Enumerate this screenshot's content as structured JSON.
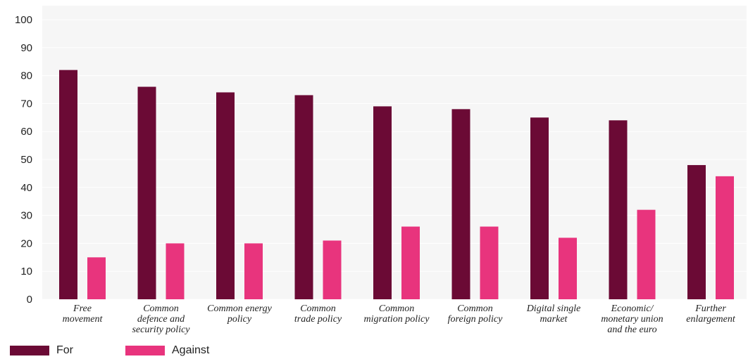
{
  "chart_data": {
    "type": "bar",
    "categories": [
      [
        "Free",
        "movement"
      ],
      [
        "Common",
        "defence and",
        "security policy"
      ],
      [
        "Common energy",
        "policy"
      ],
      [
        "Common",
        "trade policy"
      ],
      [
        "Common",
        "migration policy"
      ],
      [
        "Common",
        "foreign policy"
      ],
      [
        "Digital single",
        "market"
      ],
      [
        "Economic/",
        "monetary union",
        "and the euro"
      ],
      [
        "Further",
        "enlargement"
      ]
    ],
    "series": [
      {
        "name": "For",
        "color": "#6b0a35",
        "values": [
          82,
          76,
          74,
          73,
          69,
          68,
          65,
          64,
          48
        ]
      },
      {
        "name": "Against",
        "color": "#e8347d",
        "values": [
          15,
          20,
          20,
          21,
          26,
          26,
          22,
          32,
          44
        ]
      }
    ],
    "yticks": [
      0,
      10,
      20,
      30,
      40,
      50,
      60,
      70,
      80,
      90,
      100
    ],
    "ylim": [
      0,
      100
    ],
    "grid": true,
    "legend_position": "bottom-left",
    "background_color": "#f6f6f6"
  }
}
